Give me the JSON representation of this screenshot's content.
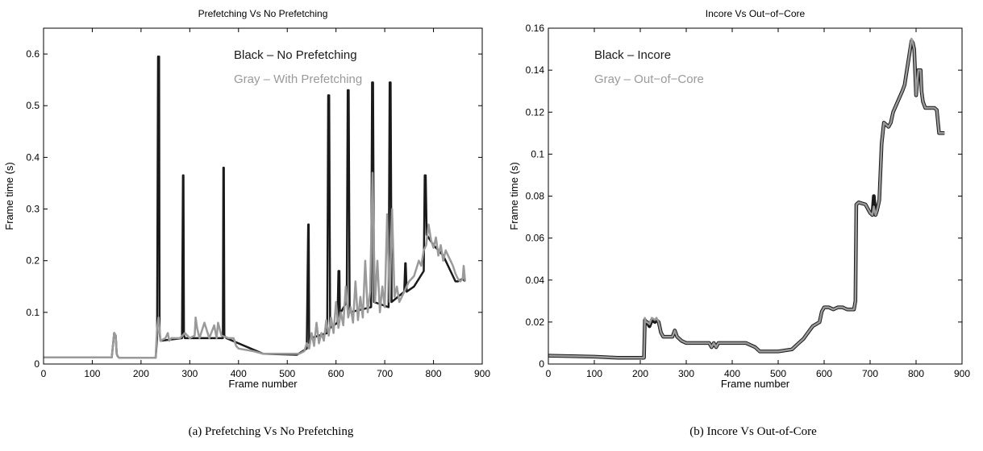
{
  "captions": [
    "(a) Prefetching Vs No Prefetching",
    "(b) Incore Vs Out-of-Core"
  ],
  "colors": {
    "black_series": "#1a1a1a",
    "gray_series": "#9a9a9a"
  },
  "chart_data": [
    {
      "type": "line",
      "title": "Prefetching Vs No Prefetching",
      "xlabel": "Frame number",
      "ylabel": "Frame time (s)",
      "xlim": [
        0,
        900
      ],
      "ylim": [
        0,
        0.65
      ],
      "xticks": [
        0,
        100,
        200,
        300,
        400,
        500,
        600,
        700,
        800,
        900
      ],
      "yticks": [
        0,
        0.1,
        0.2,
        0.3,
        0.4,
        0.5,
        0.6
      ],
      "ytick_labels": [
        "0",
        "0.1",
        "0.2",
        "0.3",
        "0.4",
        "0.5",
        "0.6"
      ],
      "grid": false,
      "legend": {
        "placement": "top-right",
        "entries": [
          "Black – No Prefetching",
          "Gray – With Prefetching"
        ]
      },
      "series": [
        {
          "color": "#1a1a1a",
          "width": 2.5,
          "x": [
            0,
            140,
            145,
            148,
            150,
            152,
            155,
            230,
            233,
            235,
            236,
            237,
            238,
            240,
            284,
            286,
            287,
            288,
            290,
            368,
            369,
            370,
            371,
            375,
            450,
            520,
            540,
            543,
            544,
            545,
            548,
            582,
            584,
            585,
            586,
            588,
            603,
            605,
            606,
            607,
            608,
            610,
            622,
            624,
            625,
            626,
            628,
            672,
            674,
            675,
            676,
            678,
            708,
            710,
            711,
            712,
            714,
            740,
            742,
            743,
            745,
            760,
            780,
            782,
            783,
            784,
            786,
            800,
            820,
            845,
            850,
            860,
            865
          ],
          "y": [
            0.013,
            0.013,
            0.06,
            0.055,
            0.02,
            0.015,
            0.012,
            0.012,
            0.05,
            0.595,
            0.595,
            0.595,
            0.06,
            0.045,
            0.05,
            0.365,
            0.365,
            0.055,
            0.05,
            0.05,
            0.38,
            0.38,
            0.055,
            0.05,
            0.02,
            0.018,
            0.03,
            0.27,
            0.27,
            0.04,
            0.05,
            0.06,
            0.52,
            0.52,
            0.52,
            0.07,
            0.08,
            0.18,
            0.18,
            0.18,
            0.09,
            0.1,
            0.12,
            0.53,
            0.53,
            0.53,
            0.1,
            0.11,
            0.545,
            0.545,
            0.545,
            0.12,
            0.11,
            0.545,
            0.545,
            0.545,
            0.12,
            0.14,
            0.195,
            0.195,
            0.14,
            0.15,
            0.18,
            0.365,
            0.365,
            0.365,
            0.25,
            0.23,
            0.21,
            0.16,
            0.16,
            0.165,
            0.16
          ]
        },
        {
          "color": "#9a9a9a",
          "width": 2.5,
          "x": [
            0,
            140,
            145,
            148,
            150,
            152,
            155,
            230,
            233,
            236,
            240,
            250,
            255,
            258,
            262,
            270,
            280,
            290,
            300,
            310,
            312,
            315,
            320,
            330,
            340,
            350,
            355,
            358,
            365,
            380,
            390,
            395,
            400,
            430,
            450,
            490,
            525,
            535,
            540,
            545,
            550,
            555,
            560,
            565,
            570,
            575,
            580,
            585,
            590,
            595,
            600,
            605,
            610,
            615,
            620,
            625,
            630,
            635,
            640,
            645,
            650,
            655,
            660,
            665,
            670,
            675,
            680,
            685,
            690,
            695,
            700,
            705,
            710,
            715,
            720,
            725,
            730,
            740,
            750,
            760,
            770,
            775,
            780,
            785,
            790,
            795,
            800,
            805,
            810,
            815,
            820,
            825,
            830,
            835,
            840,
            845,
            850,
            855,
            860,
            862,
            865
          ],
          "y": [
            0.013,
            0.013,
            0.06,
            0.055,
            0.02,
            0.015,
            0.012,
            0.012,
            0.07,
            0.09,
            0.045,
            0.05,
            0.06,
            0.045,
            0.05,
            0.05,
            0.05,
            0.06,
            0.05,
            0.055,
            0.09,
            0.07,
            0.05,
            0.08,
            0.05,
            0.075,
            0.05,
            0.08,
            0.055,
            0.05,
            0.05,
            0.035,
            0.03,
            0.025,
            0.02,
            0.02,
            0.02,
            0.025,
            0.04,
            0.03,
            0.06,
            0.035,
            0.08,
            0.04,
            0.06,
            0.045,
            0.085,
            0.055,
            0.09,
            0.06,
            0.12,
            0.07,
            0.1,
            0.075,
            0.15,
            0.09,
            0.11,
            0.08,
            0.16,
            0.085,
            0.13,
            0.09,
            0.2,
            0.1,
            0.14,
            0.37,
            0.12,
            0.2,
            0.1,
            0.15,
            0.11,
            0.29,
            0.12,
            0.3,
            0.13,
            0.15,
            0.12,
            0.14,
            0.16,
            0.17,
            0.2,
            0.19,
            0.22,
            0.23,
            0.27,
            0.24,
            0.225,
            0.245,
            0.21,
            0.23,
            0.2,
            0.22,
            0.21,
            0.2,
            0.19,
            0.175,
            0.165,
            0.16,
            0.165,
            0.19,
            0.16
          ]
        }
      ]
    },
    {
      "type": "line",
      "title": "Incore Vs Out−of−Core",
      "xlabel": "Frame number",
      "ylabel": "Frame time (s)",
      "xlim": [
        0,
        900
      ],
      "ylim": [
        0,
        0.16
      ],
      "xticks": [
        0,
        100,
        200,
        300,
        400,
        500,
        600,
        700,
        800,
        900
      ],
      "yticks": [
        0,
        0.02,
        0.04,
        0.06,
        0.08,
        0.1,
        0.12,
        0.14,
        0.16
      ],
      "ytick_labels": [
        "0",
        "0.02",
        "0.04",
        "0.06",
        "0.08",
        "0.1",
        "0.12",
        "0.14",
        "0.16"
      ],
      "grid": false,
      "legend": {
        "placement": "top-left",
        "entries": [
          "Black – Incore",
          "Gray – Out−of−Core"
        ]
      },
      "series": [
        {
          "color": "#1a1a1a",
          "width": 4.5,
          "x": [
            0,
            100,
            150,
            208,
            210,
            212,
            215,
            220,
            225,
            232,
            235,
            240,
            245,
            250,
            270,
            275,
            280,
            290,
            300,
            350,
            355,
            360,
            365,
            370,
            430,
            450,
            460,
            500,
            530,
            545,
            555,
            565,
            575,
            590,
            595,
            600,
            610,
            620,
            630,
            640,
            650,
            655,
            665,
            668,
            670,
            675,
            690,
            700,
            705,
            708,
            712,
            715,
            720,
            725,
            730,
            735,
            740,
            745,
            750,
            760,
            770,
            775,
            780,
            785,
            790,
            793,
            796,
            800,
            805,
            810,
            812,
            815,
            820,
            830,
            840,
            845,
            850,
            862
          ],
          "y": [
            0.004,
            0.0035,
            0.003,
            0.003,
            0.021,
            0.02,
            0.02,
            0.018,
            0.021,
            0.02,
            0.021,
            0.02,
            0.015,
            0.013,
            0.013,
            0.016,
            0.013,
            0.011,
            0.01,
            0.01,
            0.008,
            0.01,
            0.008,
            0.01,
            0.01,
            0.008,
            0.006,
            0.006,
            0.007,
            0.01,
            0.012,
            0.015,
            0.018,
            0.02,
            0.025,
            0.027,
            0.027,
            0.026,
            0.027,
            0.027,
            0.026,
            0.026,
            0.026,
            0.03,
            0.076,
            0.077,
            0.076,
            0.072,
            0.071,
            0.08,
            0.071,
            0.073,
            0.078,
            0.105,
            0.115,
            0.114,
            0.113,
            0.115,
            0.12,
            0.125,
            0.13,
            0.133,
            0.14,
            0.147,
            0.154,
            0.153,
            0.15,
            0.128,
            0.14,
            0.14,
            0.13,
            0.125,
            0.122,
            0.122,
            0.122,
            0.121,
            0.11,
            0.11
          ]
        },
        {
          "color": "#9a9a9a",
          "width": 2.5,
          "x": [
            0,
            100,
            150,
            208,
            210,
            212,
            215,
            220,
            225,
            232,
            235,
            240,
            245,
            250,
            270,
            275,
            280,
            290,
            300,
            350,
            355,
            360,
            365,
            370,
            430,
            450,
            460,
            500,
            530,
            545,
            555,
            565,
            575,
            590,
            595,
            600,
            610,
            620,
            630,
            640,
            650,
            655,
            665,
            668,
            670,
            675,
            690,
            700,
            705,
            708,
            712,
            715,
            720,
            725,
            730,
            735,
            740,
            745,
            750,
            760,
            770,
            775,
            780,
            785,
            790,
            793,
            796,
            800,
            805,
            810,
            812,
            815,
            820,
            830,
            840,
            845,
            850,
            862
          ],
          "y": [
            0.004,
            0.0035,
            0.003,
            0.003,
            0.022,
            0.02,
            0.02,
            0.019,
            0.022,
            0.021,
            0.022,
            0.02,
            0.015,
            0.013,
            0.013,
            0.016,
            0.013,
            0.011,
            0.01,
            0.01,
            0.008,
            0.01,
            0.008,
            0.01,
            0.01,
            0.008,
            0.006,
            0.006,
            0.007,
            0.01,
            0.012,
            0.015,
            0.018,
            0.02,
            0.025,
            0.027,
            0.027,
            0.026,
            0.027,
            0.027,
            0.026,
            0.026,
            0.026,
            0.03,
            0.076,
            0.077,
            0.076,
            0.072,
            0.071,
            0.075,
            0.071,
            0.073,
            0.078,
            0.105,
            0.115,
            0.114,
            0.113,
            0.115,
            0.12,
            0.125,
            0.13,
            0.133,
            0.14,
            0.147,
            0.155,
            0.153,
            0.15,
            0.128,
            0.14,
            0.14,
            0.13,
            0.125,
            0.122,
            0.122,
            0.122,
            0.121,
            0.11,
            0.11
          ]
        }
      ]
    }
  ]
}
